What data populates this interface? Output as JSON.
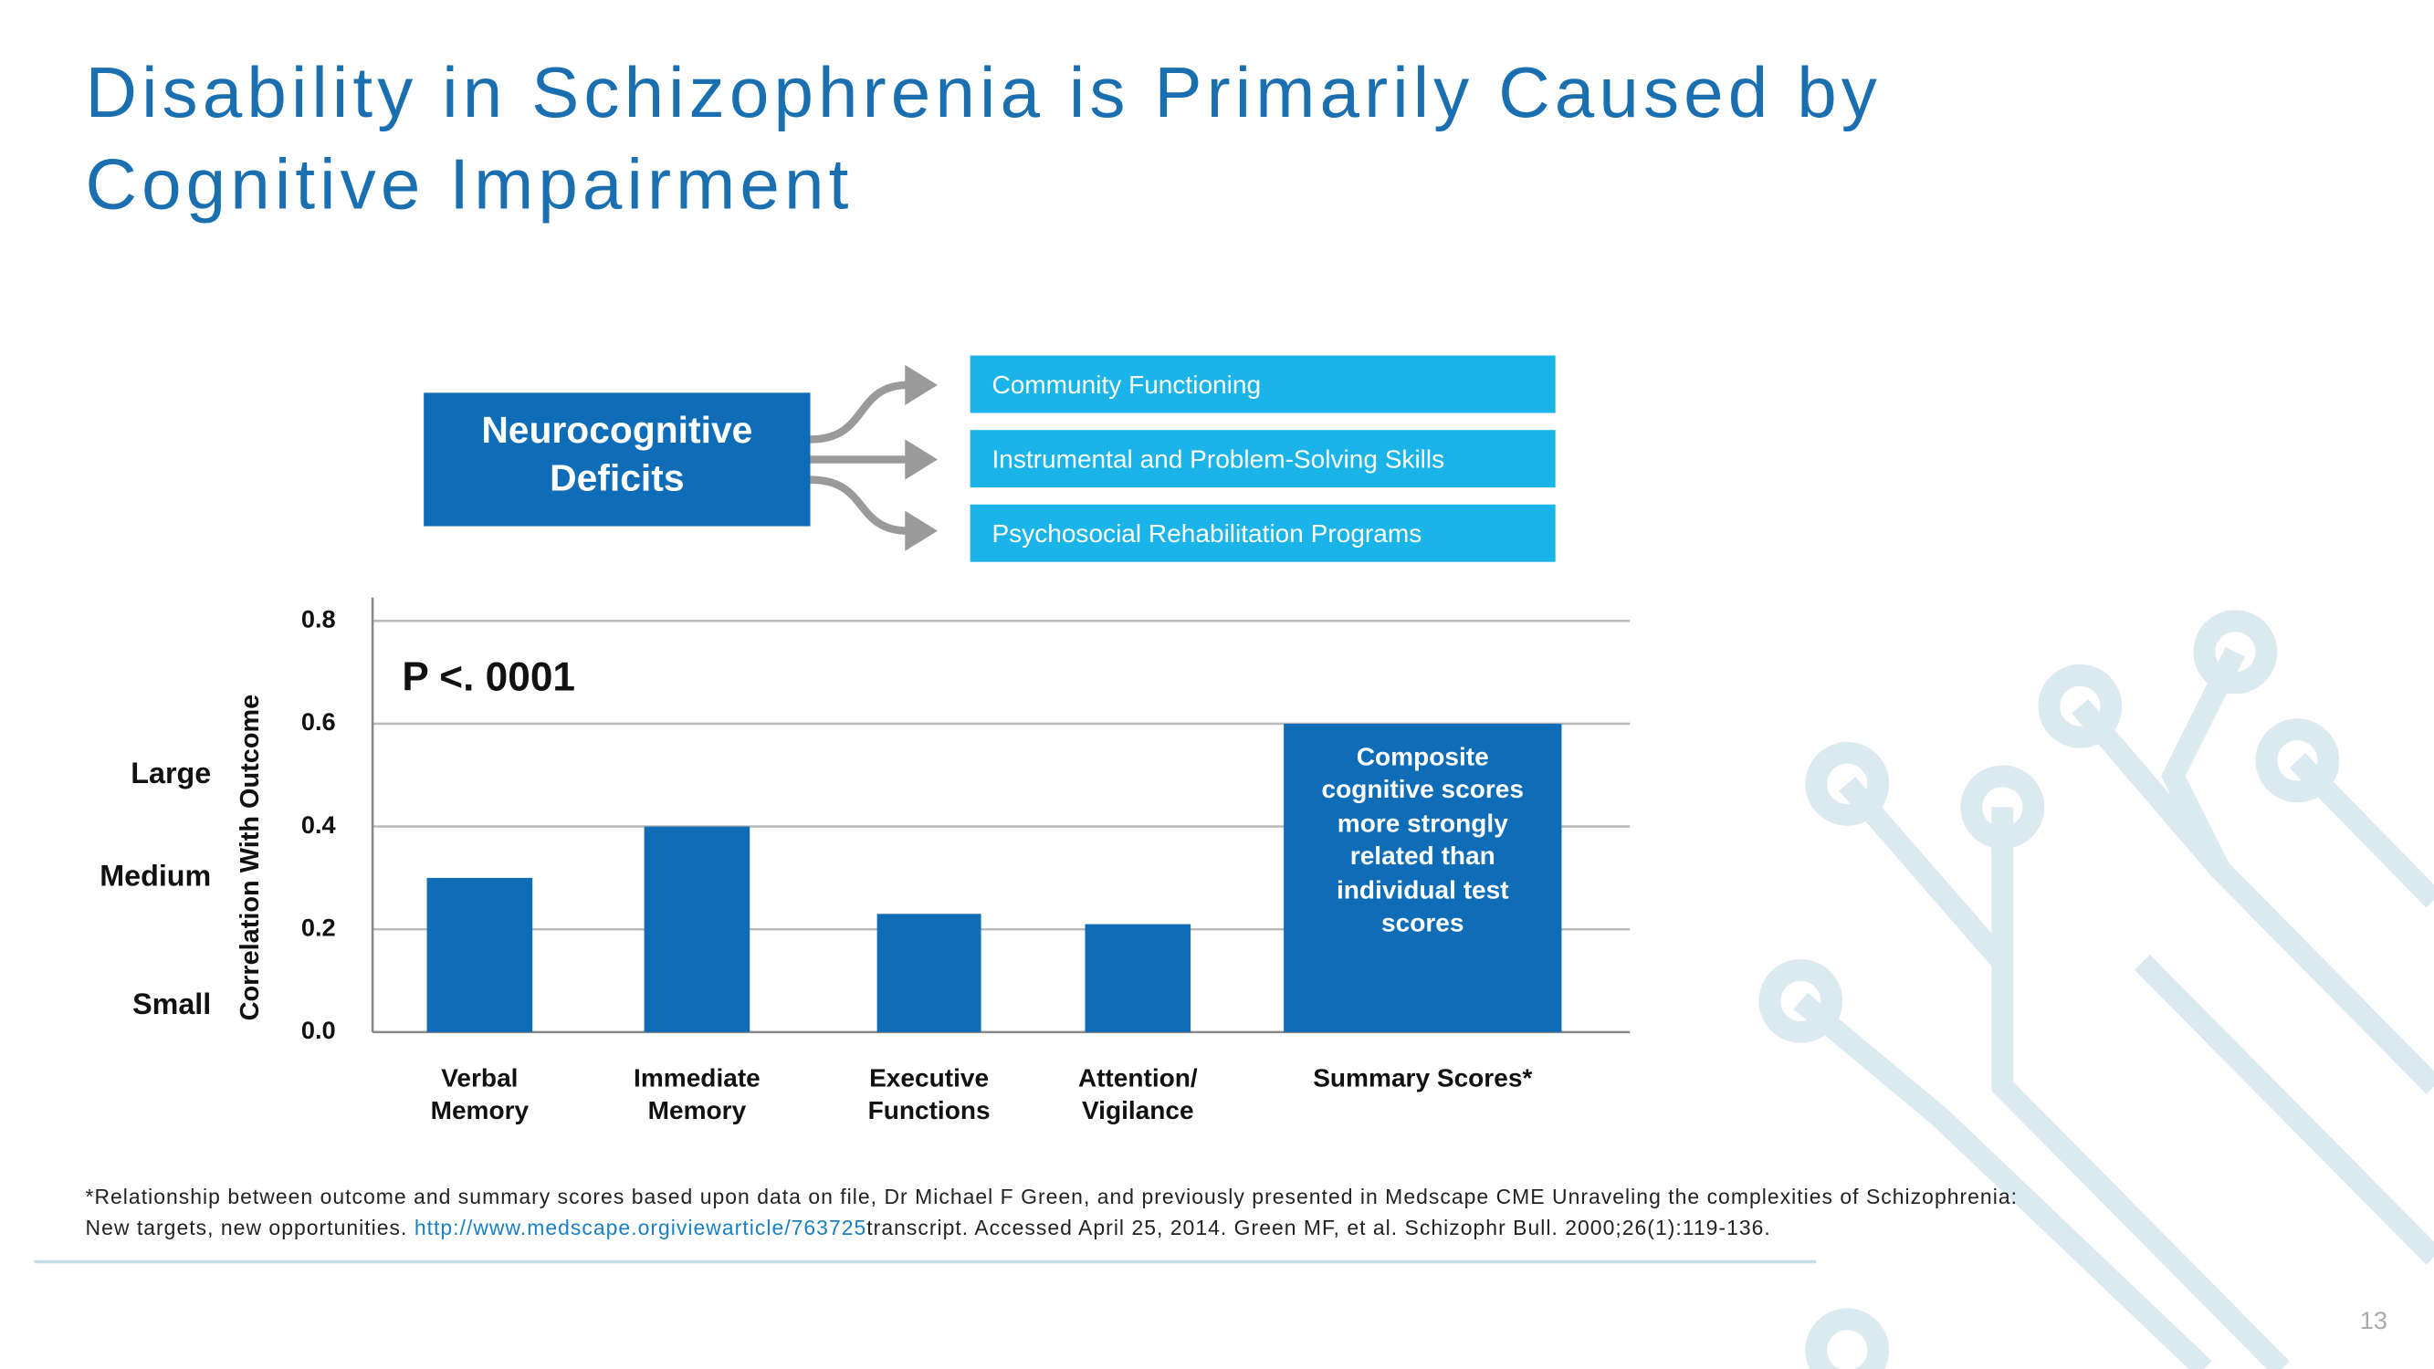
{
  "title": [
    "Disability in Schizophrenia is Primarily Caused by",
    "Cognitive Impairment"
  ],
  "diagram": {
    "source": "Neurocognitive\nDeficits",
    "outcomes": [
      "Community Functioning",
      "Instrumental and Problem-Solving Skills",
      "Psychosocial Rehabilitation Programs"
    ]
  },
  "chart_data": {
    "type": "bar",
    "y_label": "Correlation With Outcome",
    "annotation": "P <. 0001",
    "bar_note": "Composite\ncognitive scores\nmore strongly\nrelated than\nindividual test\nscores",
    "categories": [
      "Verbal\nMemory",
      "Immediate\nMemory",
      "Executive\nFunctions",
      "Attention/\nVigilance",
      "Summary Scores*"
    ],
    "values": [
      0.3,
      0.4,
      0.23,
      0.21,
      0.6
    ],
    "color": "#0f6db8",
    "ylim": [
      0,
      0.8
    ],
    "yticks": [
      {
        "value": 0,
        "label": "0.0"
      },
      0.2,
      0.4,
      0.6,
      0.8
    ],
    "grid": true,
    "effect_labels": [
      {
        "label": "Large",
        "value": 0.5
      },
      {
        "label": "Medium",
        "value": 0.3
      },
      {
        "label": "Small",
        "value": 0.05
      }
    ]
  },
  "footnote": {
    "line1": "*Relationship between outcome and summary scores based upon data on file, Dr Michael F Green, and previously presented in Medscape CME Unraveling the complexities of Schizophrenia:",
    "line2_start": "New targets, new opportunities. ",
    "link": "http://www.medscape.orgiviewarticle/763725",
    "line2_end": "transcript. Accessed April 25, 2014. Green MF, et al. Schizophr Bull. 2000;26(1):119-136."
  },
  "page_number": "13"
}
